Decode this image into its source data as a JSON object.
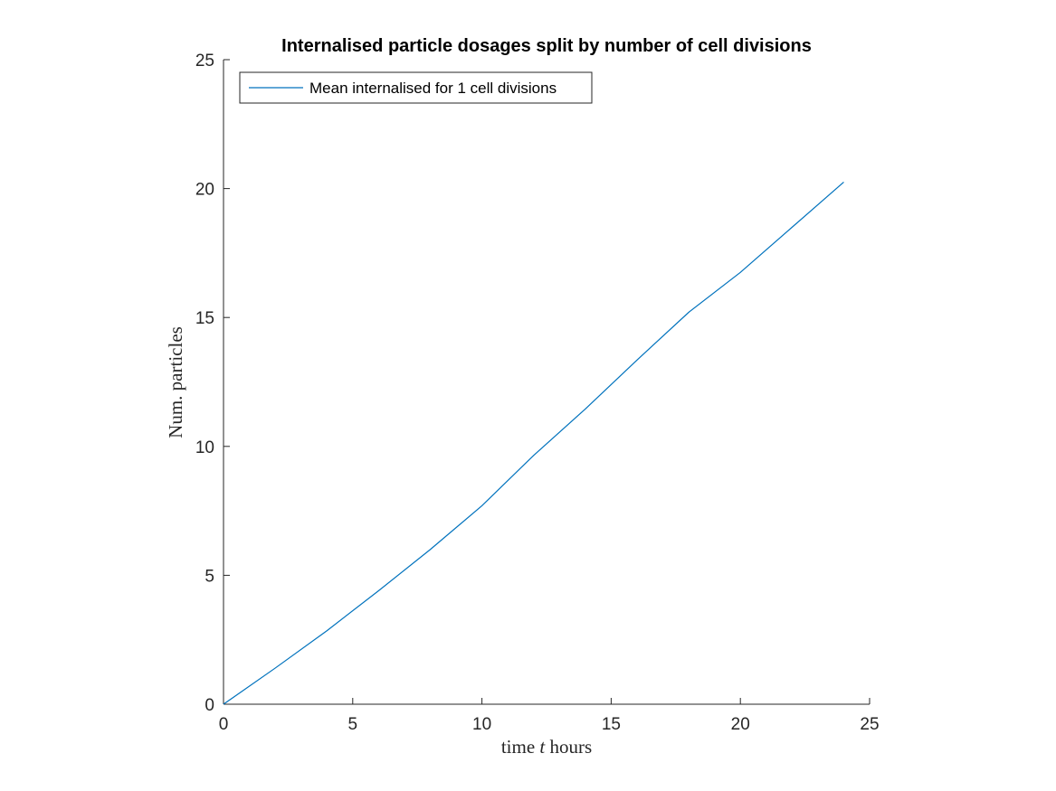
{
  "chart_data": {
    "type": "line",
    "title": "Internalised particle dosages split by number of cell divisions",
    "xlabel": "time t hours",
    "ylabel": "Num. particles",
    "xlim": [
      0,
      25
    ],
    "ylim": [
      0,
      25
    ],
    "xticks": [
      0,
      5,
      10,
      15,
      20,
      25
    ],
    "yticks": [
      0,
      5,
      10,
      15,
      20,
      25
    ],
    "grid": false,
    "legend_position": "top-left",
    "series": [
      {
        "name": "Mean internalised for 1 cell divisions",
        "color": "#0072BD",
        "x": [
          0,
          2,
          4,
          6,
          8,
          10,
          12,
          14,
          16,
          18,
          20,
          22,
          24
        ],
        "y": [
          0,
          1.4,
          2.85,
          4.4,
          6.0,
          7.7,
          9.65,
          11.45,
          13.35,
          15.2,
          16.75,
          18.5,
          20.25
        ]
      }
    ]
  }
}
